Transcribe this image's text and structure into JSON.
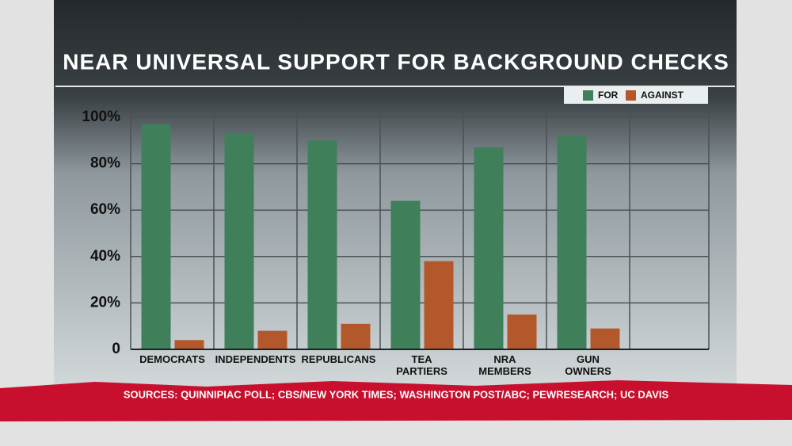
{
  "chart_data": {
    "type": "bar",
    "title": "NEAR UNIVERSAL SUPPORT FOR BACKGROUND CHECKS",
    "categories": [
      "DEMOCRATS",
      "INDEPENDENTS",
      "REPUBLICANS",
      "TEA\nPARTIERS",
      "NRA\nMEMBERS",
      "GUN\nOWNERS"
    ],
    "series": [
      {
        "name": "FOR",
        "color": "#3f7f59",
        "values": [
          97,
          93,
          90,
          64,
          87,
          92
        ]
      },
      {
        "name": "AGAINST",
        "color": "#b3582b",
        "values": [
          4,
          8,
          11,
          38,
          15,
          9
        ]
      }
    ],
    "ylim": [
      0,
      100
    ],
    "yticks": [
      0,
      {
        "value": 20,
        "label": "20%"
      },
      {
        "value": 40,
        "label": "40%"
      },
      {
        "value": 60,
        "label": "60%"
      },
      {
        "value": 80,
        "label": "80%"
      },
      {
        "value": 100,
        "label": "100%"
      }
    ],
    "grid": true,
    "legend": "top-right",
    "source": "SOURCES: QUINNIPIAC POLL; CBS/NEW YORK TIMES; WASHINGTON POST/ABC; PEWRESEARCH; UC DAVIS"
  }
}
